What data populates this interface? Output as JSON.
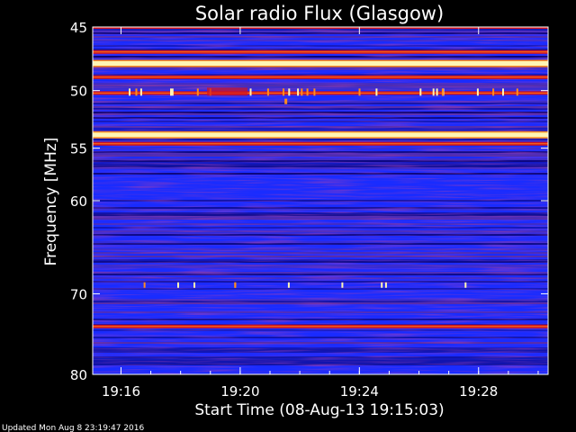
{
  "chart_data": {
    "type": "heatmap",
    "title": "Solar radio Flux (Glasgow)",
    "ylabel": "Frequency [MHz]",
    "xlabel": "Start Time (08-Aug-13 19:15:03)",
    "y_ticks": [
      "45",
      "50",
      "55",
      "60",
      "70",
      "80"
    ],
    "x_ticks": [
      "19:16",
      "19:20",
      "19:24",
      "19:28"
    ],
    "y_scale": "log",
    "ylim": [
      45,
      80
    ],
    "xlim": [
      "19:15:03",
      "19:30:20"
    ],
    "colormap": [
      "#0a0066",
      "#1a2cff",
      "#5a2ca0",
      "#d2141e",
      "#ff8c1e",
      "#fff5b4"
    ],
    "bands_mhz": [
      {
        "freq": 45.0,
        "level": "red"
      },
      {
        "freq": 46.9,
        "level": "red"
      },
      {
        "freq": 47.8,
        "level": "white"
      },
      {
        "freq": 48.9,
        "level": "red"
      },
      {
        "freq": 50.2,
        "level": "red"
      },
      {
        "freq": 53.8,
        "level": "white"
      },
      {
        "freq": 54.6,
        "level": "red"
      },
      {
        "freq": 73.9,
        "level": "red"
      }
    ],
    "bursts": [
      {
        "time": "19:21:32",
        "freq_mhz": 50.9,
        "level": "orange"
      }
    ]
  },
  "footer": {
    "updated": "Updated Mon Aug  8 23:19:47 2016"
  }
}
